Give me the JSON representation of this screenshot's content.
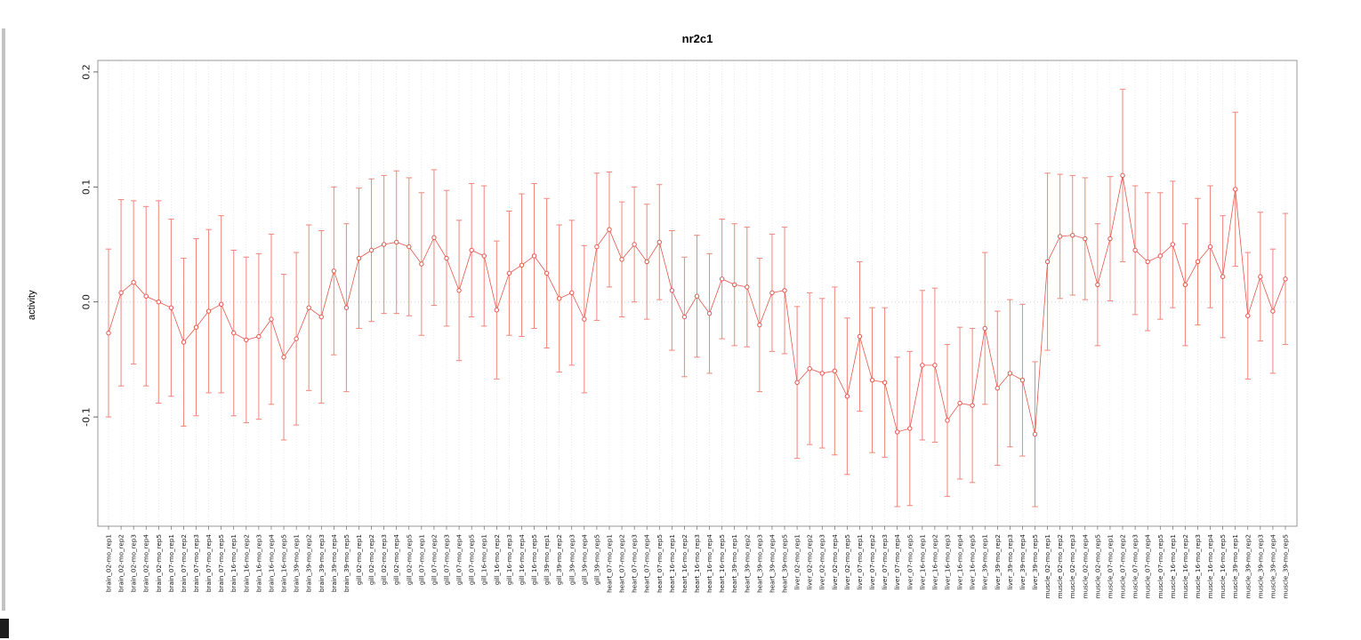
{
  "chart_data": {
    "type": "scatter",
    "title": "nr2c1",
    "ylabel": "activity",
    "xlabel": "",
    "ylim": [
      -0.195,
      0.21
    ],
    "yticks": [
      0.2,
      0.1,
      0.0,
      -0.1
    ],
    "legend_position": "none",
    "grid": {
      "vertical_per_category": true,
      "zero_line_dotted": true
    },
    "error_bar_style": "symmetric vertical bars with caps",
    "colors": {
      "point": "#e4574d",
      "line": "#e4574d",
      "bar": "#f0857a",
      "grid": "#dcdcdc",
      "frame": "#909090",
      "axis_text": "#1a1a1a"
    },
    "categories": [
      "brain_02-mo_rep1",
      "brain_02-mo_rep2",
      "brain_02-mo_rep3",
      "brain_02-mo_rep4",
      "brain_02-mo_rep5",
      "brain_07-mo_rep1",
      "brain_07-mo_rep2",
      "brain_07-mo_rep3",
      "brain_07-mo_rep4",
      "brain_07-mo_rep5",
      "brain_16-mo_rep1",
      "brain_16-mo_rep2",
      "brain_16-mo_rep3",
      "brain_16-mo_rep4",
      "brain_16-mo_rep5",
      "brain_39-mo_rep1",
      "brain_39-mo_rep2",
      "brain_39-mo_rep3",
      "brain_39-mo_rep4",
      "brain_39-mo_rep5",
      "gill_02-mo_rep1",
      "gill_02-mo_rep2",
      "gill_02-mo_rep3",
      "gill_02-mo_rep4",
      "gill_02-mo_rep5",
      "gill_07-mo_rep1",
      "gill_07-mo_rep2",
      "gill_07-mo_rep3",
      "gill_07-mo_rep4",
      "gill_07-mo_rep5",
      "gill_16-mo_rep1",
      "gill_16-mo_rep2",
      "gill_16-mo_rep3",
      "gill_16-mo_rep4",
      "gill_16-mo_rep5",
      "gill_39-mo_rep1",
      "gill_39-mo_rep2",
      "gill_39-mo_rep3",
      "gill_39-mo_rep4",
      "gill_39-mo_rep5",
      "heart_07-mo_rep1",
      "heart_07-mo_rep2",
      "heart_07-mo_rep3",
      "heart_07-mo_rep4",
      "heart_07-mo_rep5",
      "heart_16-mo_rep1",
      "heart_16-mo_rep2",
      "heart_16-mo_rep3",
      "heart_16-mo_rep4",
      "heart_16-mo_rep5",
      "heart_39-mo_rep1",
      "heart_39-mo_rep2",
      "heart_39-mo_rep3",
      "heart_39-mo_rep4",
      "heart_39-mo_rep5",
      "liver_02-mo_rep1",
      "liver_02-mo_rep2",
      "liver_02-mo_rep3",
      "liver_02-mo_rep4",
      "liver_02-mo_rep5",
      "liver_07-mo_rep1",
      "liver_07-mo_rep2",
      "liver_07-mo_rep3",
      "liver_07-mo_rep4",
      "liver_07-mo_rep5",
      "liver_16-mo_rep1",
      "liver_16-mo_rep2",
      "liver_16-mo_rep3",
      "liver_16-mo_rep4",
      "liver_16-mo_rep5",
      "liver_39-mo_rep1",
      "liver_39-mo_rep2",
      "liver_39-mo_rep3",
      "liver_39-mo_rep4",
      "liver_39-mo_rep5",
      "muscle_02-mo_rep1",
      "muscle_02-mo_rep2",
      "muscle_02-mo_rep3",
      "muscle_02-mo_rep4",
      "muscle_02-mo_rep5",
      "muscle_07-mo_rep1",
      "muscle_07-mo_rep2",
      "muscle_07-mo_rep3",
      "muscle_07-mo_rep4",
      "muscle_07-mo_rep5",
      "muscle_16-mo_rep1",
      "muscle_16-mo_rep2",
      "muscle_16-mo_rep3",
      "muscle_16-mo_rep4",
      "muscle_16-mo_rep5",
      "muscle_39-mo_rep1",
      "muscle_39-mo_rep2",
      "muscle_39-mo_rep3",
      "muscle_39-mo_rep4",
      "muscle_39-mo_rep5"
    ],
    "series": [
      {
        "name": "nr2c1 activity",
        "means": [
          -0.027,
          0.008,
          0.017,
          0.005,
          0.0,
          -0.005,
          -0.035,
          -0.022,
          -0.008,
          -0.002,
          -0.027,
          -0.033,
          -0.03,
          -0.015,
          -0.048,
          -0.032,
          -0.005,
          -0.013,
          0.027,
          -0.005,
          0.038,
          0.045,
          0.05,
          0.052,
          0.048,
          0.033,
          0.056,
          0.038,
          0.01,
          0.045,
          0.04,
          -0.007,
          0.025,
          0.032,
          0.04,
          0.025,
          0.003,
          0.008,
          -0.015,
          0.048,
          0.063,
          0.037,
          0.05,
          0.035,
          0.052,
          0.01,
          -0.013,
          0.005,
          -0.01,
          0.02,
          0.015,
          0.013,
          -0.02,
          0.008,
          0.01,
          -0.07,
          -0.058,
          -0.062,
          -0.06,
          -0.082,
          -0.03,
          -0.068,
          -0.07,
          -0.113,
          -0.11,
          -0.055,
          -0.055,
          -0.103,
          -0.088,
          -0.09,
          -0.023,
          -0.075,
          -0.062,
          -0.068,
          -0.115,
          0.035,
          0.057,
          0.058,
          0.055,
          0.015,
          0.055,
          0.11,
          0.045,
          0.035,
          0.04,
          0.05,
          0.015,
          0.035,
          0.048,
          0.022,
          0.098,
          -0.012,
          0.022,
          -0.008,
          0.02
        ],
        "err": [
          0.073,
          0.081,
          0.071,
          0.078,
          0.088,
          0.077,
          0.073,
          0.077,
          0.071,
          0.077,
          0.072,
          0.072,
          0.072,
          0.074,
          0.072,
          0.075,
          0.072,
          0.075,
          0.073,
          0.073,
          0.061,
          0.062,
          0.06,
          0.062,
          0.06,
          0.062,
          0.059,
          0.059,
          0.061,
          0.058,
          0.061,
          0.06,
          0.054,
          0.062,
          0.063,
          0.065,
          0.064,
          0.063,
          0.064,
          0.064,
          0.05,
          0.05,
          0.05,
          0.05,
          0.05,
          0.052,
          0.052,
          0.053,
          0.052,
          0.052,
          0.053,
          0.052,
          0.058,
          0.051,
          0.055,
          0.066,
          0.066,
          0.065,
          0.073,
          0.068,
          0.065,
          0.063,
          0.065,
          0.065,
          0.067,
          0.065,
          0.067,
          0.066,
          0.066,
          0.067,
          0.066,
          0.067,
          0.064,
          0.066,
          0.063,
          0.077,
          0.054,
          0.052,
          0.053,
          0.053,
          0.054,
          0.075,
          0.056,
          0.06,
          0.055,
          0.055,
          0.053,
          0.055,
          0.053,
          0.053,
          0.067,
          0.055,
          0.056,
          0.054,
          0.057
        ]
      }
    ]
  }
}
